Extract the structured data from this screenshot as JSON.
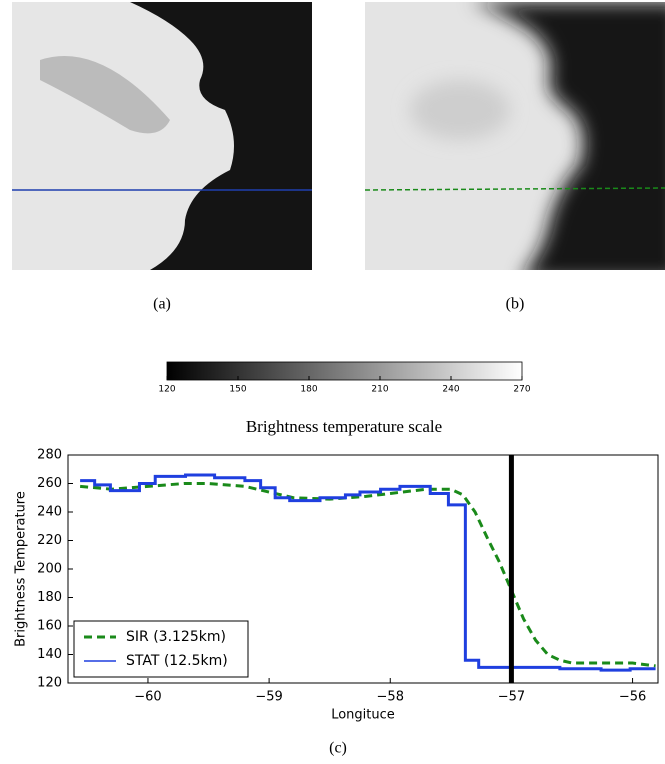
{
  "panels": [
    {
      "caption": "(a)"
    },
    {
      "caption": "(b)"
    }
  ],
  "colorbar": {
    "label": "Brightness temperature scale",
    "lim": [
      120,
      270
    ],
    "ticks": [
      120,
      150,
      180,
      210,
      240,
      270
    ]
  },
  "chart_data": {
    "type": "line",
    "caption": "(c)",
    "x_label": "Longituce",
    "y_label": "Brightness Temperature",
    "xlim": [
      -60.66,
      -55.79
    ],
    "ylim": [
      120,
      280
    ],
    "xticks": [
      {
        "value": -60,
        "label": "−60"
      },
      {
        "value": -59,
        "label": "−59"
      },
      {
        "value": -58,
        "label": "−58"
      },
      {
        "value": -57,
        "label": "−57"
      },
      {
        "value": -56,
        "label": "−56"
      }
    ],
    "yticks": [
      120,
      140,
      160,
      180,
      200,
      220,
      240,
      260,
      280
    ],
    "vline": -57,
    "legend": "lower left",
    "series": [
      {
        "name": "SIR (3.125km)",
        "color": "#1a8a1a",
        "style": "dashed",
        "step": false,
        "x": [
          -60.56,
          -60.3,
          -60.0,
          -59.7,
          -59.5,
          -59.2,
          -59.0,
          -58.8,
          -58.5,
          -58.2,
          -58.0,
          -57.7,
          -57.5,
          -57.4,
          -57.3,
          -57.2,
          -57.1,
          -57.0,
          -56.9,
          -56.8,
          -56.7,
          -56.6,
          -56.5,
          -56.0,
          -55.81
        ],
        "values": [
          258,
          256,
          258,
          260,
          260,
          258,
          254,
          250,
          249,
          251,
          253,
          256,
          256,
          252,
          240,
          222,
          205,
          185,
          165,
          150,
          140,
          136,
          134,
          134,
          132
        ]
      },
      {
        "name": "STAT (12.5km)",
        "color": "#1f3fdf",
        "style": "solid",
        "step": true,
        "x": [
          -60.56,
          -60.44,
          -60.31,
          -60.07,
          -59.94,
          -59.69,
          -59.45,
          -59.2,
          -59.07,
          -58.95,
          -58.83,
          -58.58,
          -58.37,
          -58.25,
          -58.08,
          -57.92,
          -57.67,
          -57.52,
          -57.38,
          -57.27,
          -56.6,
          -56.26,
          -56.02,
          -55.81
        ],
        "values": [
          262,
          259,
          255,
          260,
          265,
          266,
          264,
          262,
          257,
          250,
          248,
          250,
          252,
          254,
          256,
          258,
          253,
          245,
          136,
          131,
          130,
          129,
          130,
          130
        ]
      }
    ]
  }
}
